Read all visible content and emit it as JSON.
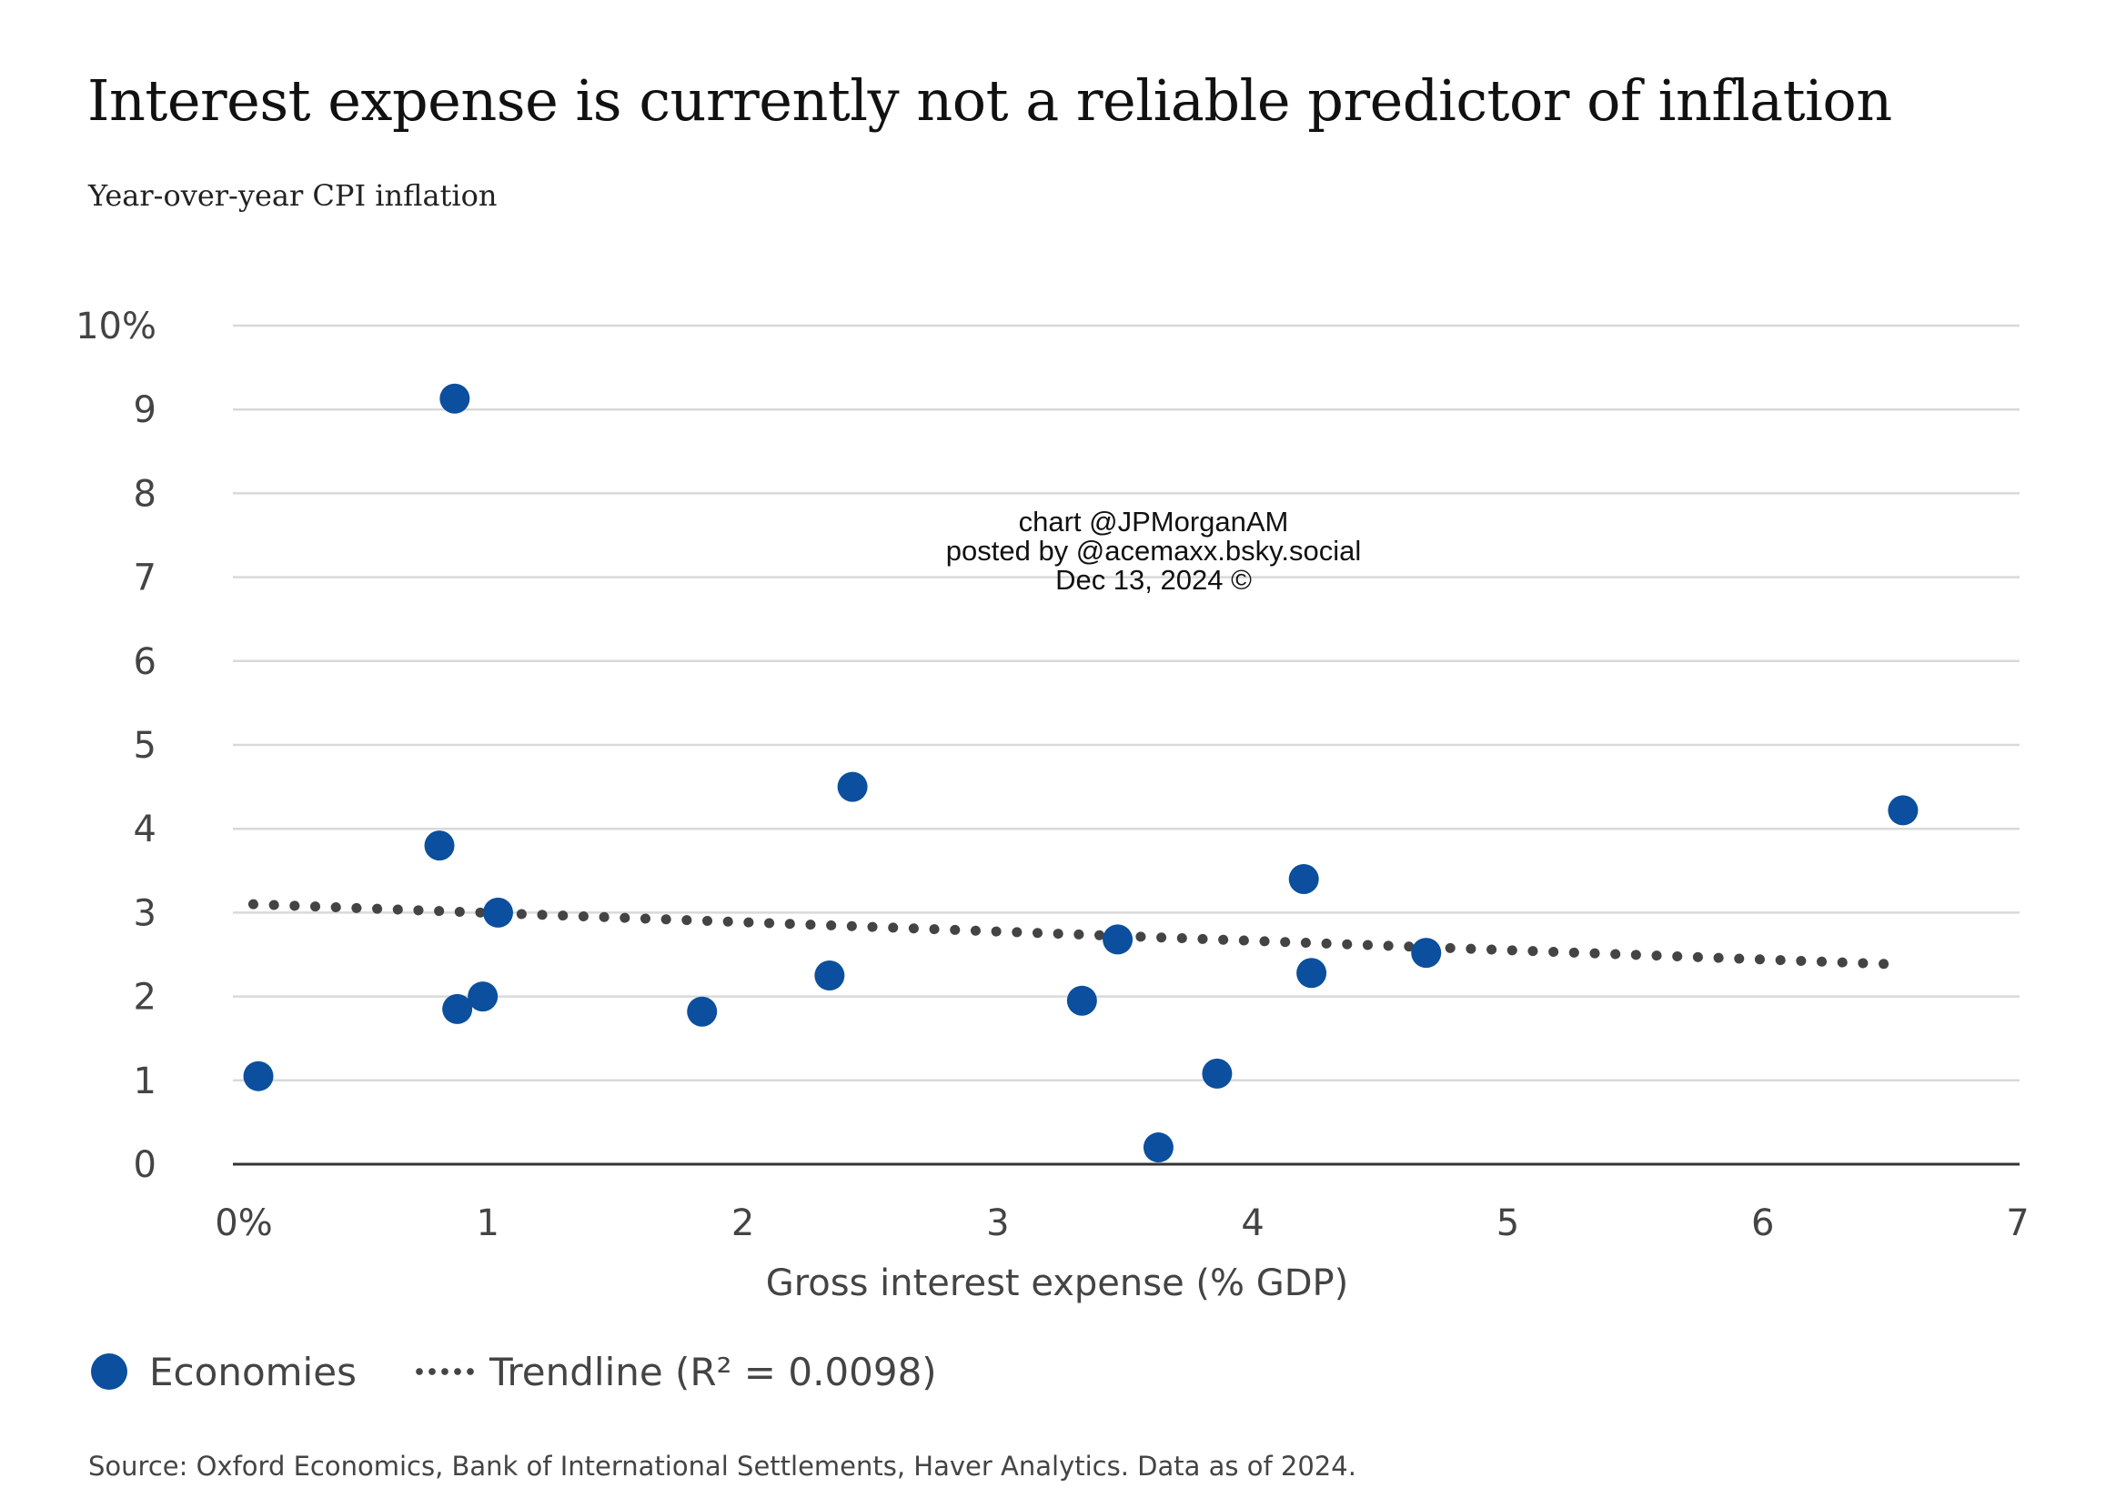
{
  "chart_data": {
    "type": "scatter",
    "title": "Interest expense is currently not a reliable predictor of inflation",
    "subtitle": "Year-over-year CPI inflation",
    "xlabel": "Gross interest expense (% GDP)",
    "ylabel": "",
    "xlim": [
      0,
      7
    ],
    "ylim": [
      0,
      10
    ],
    "x_ticks": [
      {
        "value": 0,
        "label": "0%"
      },
      {
        "value": 1,
        "label": "1"
      },
      {
        "value": 2,
        "label": "2"
      },
      {
        "value": 3,
        "label": "3"
      },
      {
        "value": 4,
        "label": "4"
      },
      {
        "value": 5,
        "label": "5"
      },
      {
        "value": 6,
        "label": "6"
      },
      {
        "value": 7,
        "label": "7"
      }
    ],
    "y_ticks": [
      {
        "value": 0,
        "label": "0"
      },
      {
        "value": 1,
        "label": "1"
      },
      {
        "value": 2,
        "label": "2"
      },
      {
        "value": 3,
        "label": "3"
      },
      {
        "value": 4,
        "label": "4"
      },
      {
        "value": 5,
        "label": "5"
      },
      {
        "value": 6,
        "label": "6"
      },
      {
        "value": 7,
        "label": "7"
      },
      {
        "value": 8,
        "label": "8"
      },
      {
        "value": 9,
        "label": "9"
      },
      {
        "value": 10,
        "label": "10%"
      }
    ],
    "grid": true,
    "series": [
      {
        "name": "Economies",
        "color": "#0b4f9e",
        "points": [
          {
            "x": 0.1,
            "y": 1.05
          },
          {
            "x": 0.87,
            "y": 9.13
          },
          {
            "x": 0.81,
            "y": 3.8
          },
          {
            "x": 1.04,
            "y": 3.0
          },
          {
            "x": 0.88,
            "y": 1.85
          },
          {
            "x": 0.98,
            "y": 2.0
          },
          {
            "x": 1.84,
            "y": 1.82
          },
          {
            "x": 2.34,
            "y": 2.25
          },
          {
            "x": 2.43,
            "y": 4.5
          },
          {
            "x": 3.33,
            "y": 1.95
          },
          {
            "x": 3.47,
            "y": 2.68
          },
          {
            "x": 3.63,
            "y": 0.2
          },
          {
            "x": 3.86,
            "y": 1.08
          },
          {
            "x": 4.2,
            "y": 3.4
          },
          {
            "x": 4.23,
            "y": 2.28
          },
          {
            "x": 4.68,
            "y": 2.52
          },
          {
            "x": 6.55,
            "y": 4.22
          }
        ]
      },
      {
        "name": "Trendline (R² = 0.0098)",
        "color": "#444444",
        "style": "dotted",
        "points": [
          {
            "x": 0.08,
            "y": 3.1
          },
          {
            "x": 6.55,
            "y": 2.38
          }
        ]
      }
    ],
    "legend_placement": "bottom-left",
    "source": "Source: Oxford Economics, Bank of International Settlements, Haver Analytics. Data as of 2024."
  },
  "legend": {
    "economies_label": "Economies",
    "trendline_label": "Trendline (R² = 0.0098)"
  },
  "watermark": {
    "line1": "chart @JPMorganAM",
    "line2": "posted by @acemaxx.bsky.social",
    "line3": "Dec 13, 2024 ©"
  },
  "colors": {
    "marker": "#0b4f9e",
    "trendline": "#444444",
    "grid": "#d9d9d9",
    "baseline": "#333333"
  }
}
